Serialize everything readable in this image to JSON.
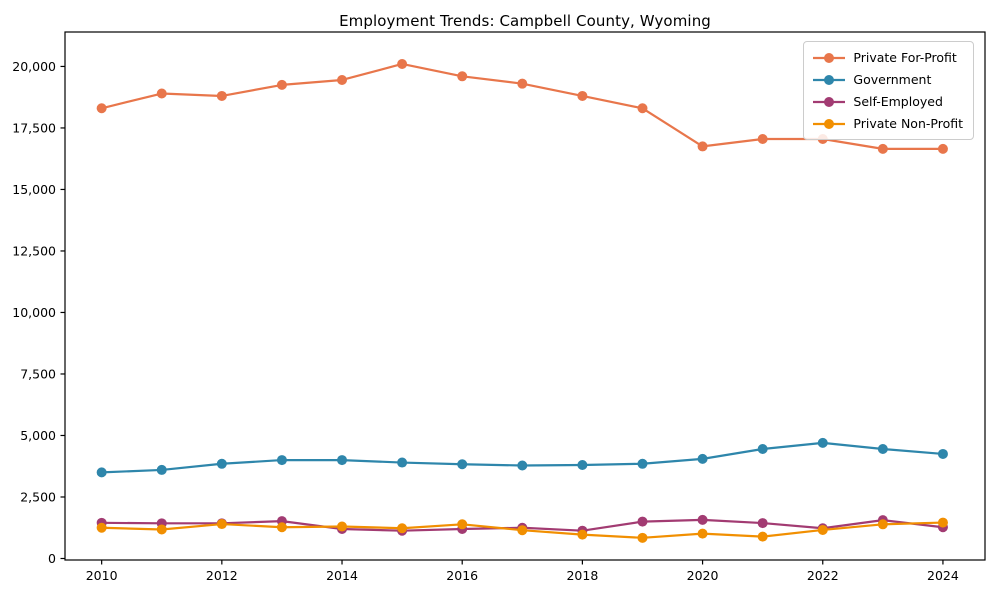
{
  "chart_data": {
    "type": "line",
    "title": "Employment Trends: Campbell County, Wyoming",
    "xlabel": "",
    "ylabel": "",
    "x": [
      2010,
      2011,
      2012,
      2013,
      2014,
      2015,
      2016,
      2017,
      2018,
      2019,
      2020,
      2021,
      2022,
      2023,
      2024
    ],
    "series": [
      {
        "name": "Private For-Profit",
        "color": "#E8764B",
        "values": [
          18300,
          18900,
          18800,
          19250,
          19450,
          20100,
          19600,
          19300,
          18800,
          18300,
          16750,
          17050,
          17050,
          16650,
          16650
        ]
      },
      {
        "name": "Government",
        "color": "#2E86AB",
        "values": [
          3500,
          3600,
          3850,
          4000,
          4000,
          3900,
          3830,
          3780,
          3800,
          3850,
          4050,
          4450,
          4700,
          4450,
          4250
        ]
      },
      {
        "name": "Self-Employed",
        "color": "#A23B72",
        "values": [
          1450,
          1430,
          1430,
          1520,
          1200,
          1130,
          1200,
          1250,
          1130,
          1500,
          1570,
          1440,
          1230,
          1560,
          1270
        ]
      },
      {
        "name": "Private Non-Profit",
        "color": "#F18F01",
        "values": [
          1250,
          1180,
          1400,
          1270,
          1300,
          1230,
          1390,
          1150,
          970,
          840,
          1010,
          890,
          1160,
          1390,
          1460
        ]
      }
    ],
    "xticks": [
      2010,
      2012,
      2014,
      2016,
      2018,
      2020,
      2022,
      2024
    ],
    "yticks": [
      0,
      2500,
      5000,
      7500,
      10000,
      12500,
      15000,
      17500,
      20000
    ],
    "xlim": [
      2009.39,
      2024.7
    ],
    "ylim": [
      0,
      21400
    ],
    "grid": false,
    "legend_position": "upper right",
    "axis_color": "#000000"
  }
}
